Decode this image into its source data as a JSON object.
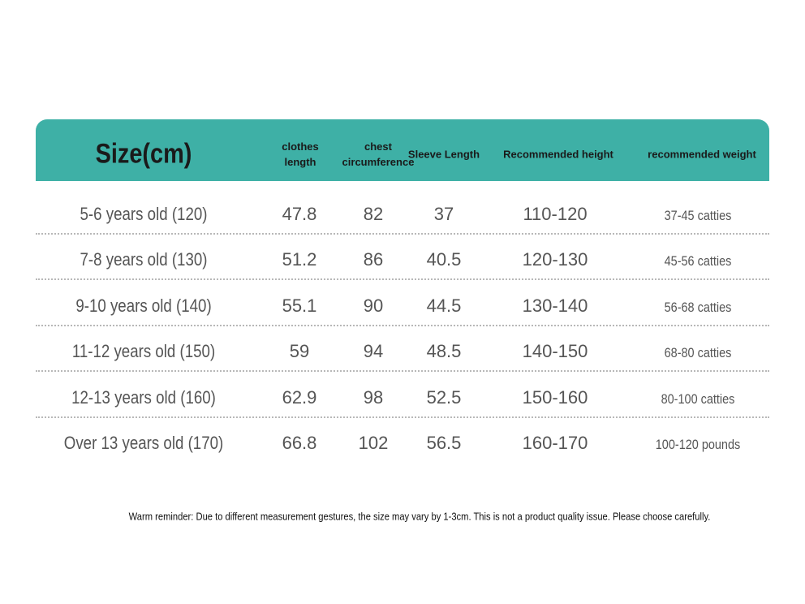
{
  "table": {
    "header": [
      "Size(cm)",
      "clothes length",
      "chest circumference",
      "Sleeve Length",
      "Recommended height",
      "recommended weight"
    ],
    "rows": [
      [
        "5-6 years old (120)",
        "47.8",
        "82",
        "37",
        "110-120",
        "37-45 catties"
      ],
      [
        "7-8 years old (130)",
        "51.2",
        "86",
        "40.5",
        "120-130",
        "45-56 catties"
      ],
      [
        "9-10 years old (140)",
        "55.1",
        "90",
        "44.5",
        "130-140",
        "56-68 catties"
      ],
      [
        "11-12 years old (150)",
        "59",
        "94",
        "48.5",
        "140-150",
        "68-80 catties"
      ],
      [
        "12-13 years old (160)",
        "62.9",
        "98",
        "52.5",
        "150-160",
        "80-100 catties"
      ],
      [
        "Over 13 years old (170)",
        "66.8",
        "102",
        "56.5",
        "160-170",
        "100-120 pounds"
      ]
    ]
  },
  "note": "Warm reminder: Due to different measurement gestures, the size may vary by 1-3cm. This is not a product quality issue. Please choose carefully."
}
